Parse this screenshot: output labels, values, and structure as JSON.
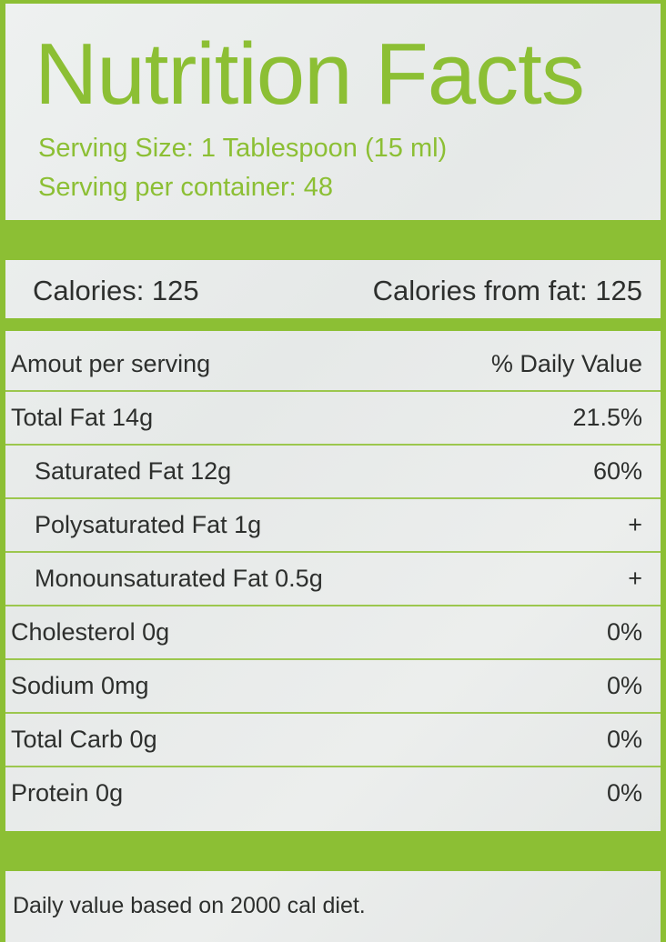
{
  "label": {
    "title": "Nutrition Facts",
    "serving_size": "Serving Size: 1 Tablespoon (15 ml)",
    "servings_per_container": "Serving per container: 48",
    "calories": "Calories: 125",
    "calories_from_fat": "Calories from fat: 125",
    "header": {
      "left": "Amout per serving",
      "right": "% Daily Value"
    },
    "rows": [
      {
        "name": "Total Fat 14g",
        "value": "21.5%"
      },
      {
        "name": "Saturated Fat 12g",
        "value": "60%"
      },
      {
        "name": "Polysaturated Fat 1g",
        "value": "+"
      },
      {
        "name": "Monounsaturated Fat 0.5g",
        "value": "+"
      },
      {
        "name": "Cholesterol 0g",
        "value": "0%"
      },
      {
        "name": "Sodium 0mg",
        "value": "0%"
      },
      {
        "name": "Total Carb 0g",
        "value": "0%"
      },
      {
        "name": "Protein 0g",
        "value": "0%"
      }
    ],
    "footnote": "Daily value based on 2000 cal diet."
  },
  "colors": {
    "accent": "#8cbf34",
    "text": "#2d2f2d",
    "background": "#eceeed"
  }
}
